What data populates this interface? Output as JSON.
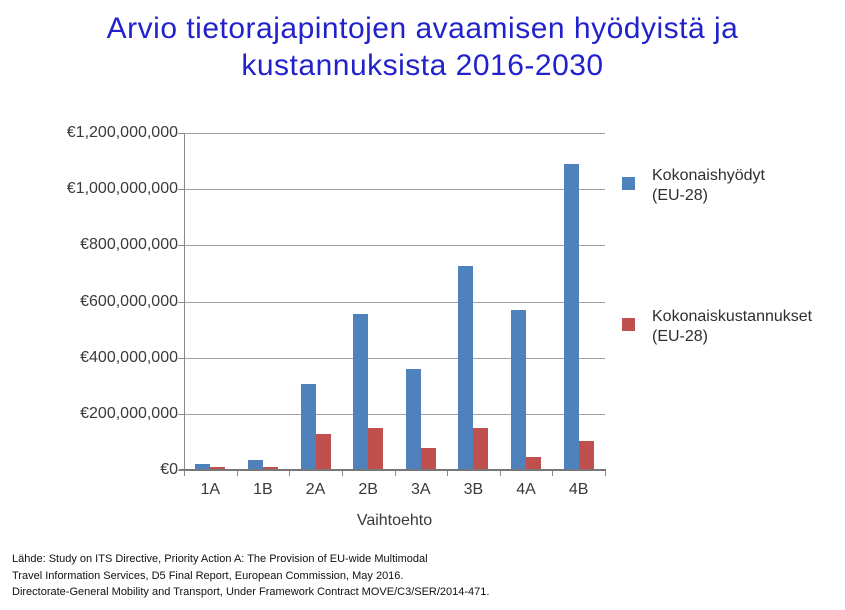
{
  "title": {
    "line1": "Arvio tietorajapintojen avaamisen hyödyistä ja",
    "line2": "kustannuksista 2016-2030"
  },
  "chart_data": {
    "type": "bar",
    "categories": [
      "1A",
      "1B",
      "2A",
      "2B",
      "3A",
      "3B",
      "4A",
      "4B"
    ],
    "series": [
      {
        "key": "kokonaishyodyt",
        "name": "Kokonaishyödyt (EU-28)",
        "color": "#4F81BD",
        "values": [
          20000000,
          35000000,
          305000000,
          555000000,
          360000000,
          725000000,
          570000000,
          1090000000
        ]
      },
      {
        "key": "kokonaiskustannukset",
        "name": "Kokonaiskustannukset (EU-28)",
        "color": "#C0504D",
        "values": [
          10000000,
          10000000,
          130000000,
          150000000,
          80000000,
          150000000,
          45000000,
          105000000
        ]
      }
    ],
    "title": "Arvio tietorajapintojen avaamisen hyödyistä ja kustannuksista 2016-2030",
    "xlabel": "Vaihtoehto",
    "ylabel": "",
    "ylim": [
      0,
      1200000000
    ],
    "ytick_step": 200000000,
    "ytick_labels": [
      "€0",
      "€200,000,000",
      "€400,000,000",
      "€600,000,000",
      "€800,000,000",
      "€1,000,000,000",
      "€1,200,000,000"
    ],
    "grid": true,
    "legend_position": "right"
  },
  "legend": {
    "items": [
      {
        "line1": "Kokonaishyödyt",
        "line2": "(EU-28)"
      },
      {
        "line1": "Kokonaiskustannukset",
        "line2": "(EU-28)"
      }
    ]
  },
  "source": {
    "line1": "Lähde: Study on ITS Directive, Priority Action A: The Provision of EU-wide Multimodal",
    "line2": "Travel Information Services, D5 Final Report, European Commission, May 2016.",
    "line3": "Directorate-General Mobility and Transport, Under Framework Contract MOVE/C3/SER/2014-471."
  }
}
